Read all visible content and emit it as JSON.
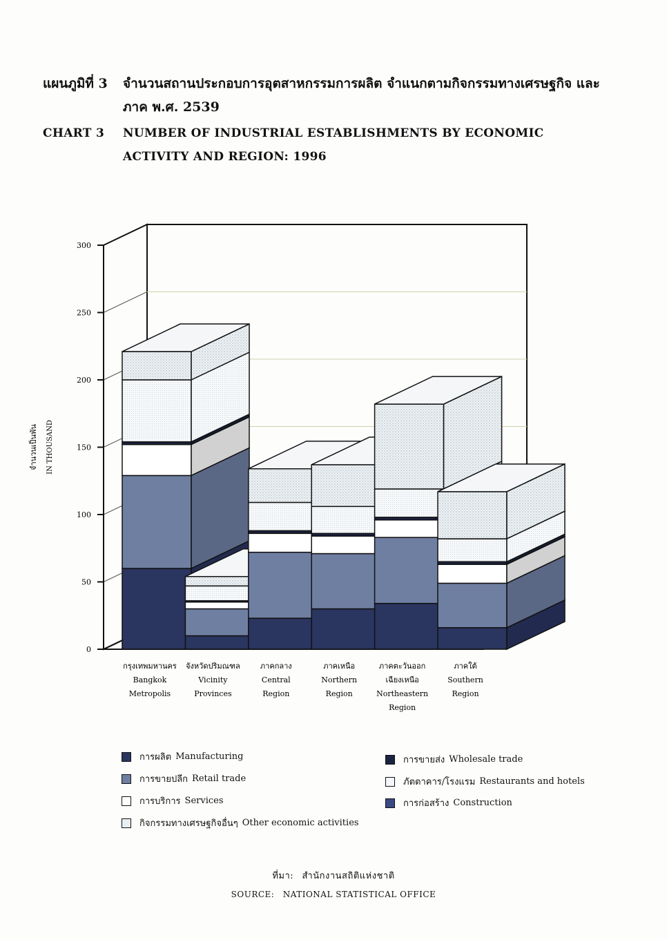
{
  "title": {
    "th_label": "แผนภูมิที่ 3",
    "th_text": "จำนวนสถานประกอบการอุตสาหกรรมการผลิต จำแนกตามกิจกรรมทางเศรษฐกิจ และภาค พ.ศ. 2539",
    "en_label": "CHART 3",
    "en_text": "NUMBER OF INDUSTRIAL ESTABLISHMENTS BY ECONOMIC ACTIVITY AND REGION: 1996"
  },
  "chart_data": {
    "type": "bar",
    "stacked": true,
    "three_d": true,
    "ylabel_th": "จำนวนเป็นพัน",
    "ylabel_en": "IN THOUSAND",
    "ylim": [
      0,
      300
    ],
    "yticks": [
      0,
      50,
      100,
      150,
      200,
      250,
      300
    ],
    "categories": [
      {
        "th": "กรุงเทพมหานคร",
        "en": [
          "Bangkok",
          "Metropolis"
        ]
      },
      {
        "th": "จังหวัดปริมณฑล",
        "en": [
          "Vicinity",
          "Provinces"
        ]
      },
      {
        "th": "ภาคกลาง",
        "en": [
          "Central",
          "Region"
        ]
      },
      {
        "th": "ภาคเหนือ",
        "en": [
          "Northern",
          "Region"
        ]
      },
      {
        "th": "ภาคตะวันออก",
        "th2": "เฉียงเหนือ",
        "en": [
          "Northeastern",
          "Region"
        ]
      },
      {
        "th": "ภาคใต้",
        "en": [
          "Southern",
          "Region"
        ]
      }
    ],
    "series": [
      {
        "th": "การผลิต",
        "en": "Manufacturing",
        "color": "#2a3560",
        "values": [
          60,
          10,
          23,
          30,
          34,
          16
        ]
      },
      {
        "th": "การขายปลีก",
        "en": "Retail trade",
        "color": "#6f7fa2",
        "values": [
          69,
          20,
          49,
          41,
          49,
          33
        ]
      },
      {
        "th": "การบริการ",
        "en": "Services",
        "color": "#ffffff",
        "values": [
          23,
          5,
          14,
          13,
          13,
          14
        ]
      },
      {
        "th": "การขายส่ง",
        "en": "Wholesale trade",
        "color": "#1b2340",
        "values": [
          2,
          1,
          2,
          2,
          2,
          2
        ]
      },
      {
        "th": "ภัตตาคาร/โรงแรม",
        "en": "Restaurants and hotels",
        "color": "#f3f6fa",
        "values": [
          46,
          11,
          21,
          20,
          21,
          17
        ]
      },
      {
        "th": "กิจกรรมทางเศรษฐกิจอื่นๆ",
        "en": "Other economic activities",
        "color": "#e8eef2",
        "values": [
          21,
          7,
          25,
          31,
          63,
          35
        ]
      }
    ],
    "totals": [
      221,
      54,
      134,
      137,
      182,
      117
    ]
  },
  "legend": {
    "left": [
      {
        "th": "การผลิต",
        "en": "Manufacturing",
        "color": "#2a3560"
      },
      {
        "th": "การขายปลีก",
        "en": "Retail trade",
        "color": "#6f7fa2"
      },
      {
        "th": "การบริการ",
        "en": "Services",
        "color": "#ffffff"
      },
      {
        "th": "กิจกรรมทางเศรษฐกิจอื่นๆ",
        "en": "Other economic activities",
        "color": "#e8eef2"
      }
    ],
    "right": [
      {
        "th": "การขายส่ง",
        "en": "Wholesale trade",
        "color": "#1b2340"
      },
      {
        "th": "ภัตตาคาร/โรงแรม",
        "en": "Restaurants and hotels",
        "color": "#f3f6fa"
      },
      {
        "th": "การก่อสร้าง",
        "en": "Construction",
        "color": "#3a4a85"
      }
    ]
  },
  "source": {
    "th_label": "ที่มา:",
    "th_text": "สำนักงานสถิติแห่งชาติ",
    "en_label": "SOURCE:",
    "en_text": "NATIONAL STATISTICAL OFFICE"
  }
}
